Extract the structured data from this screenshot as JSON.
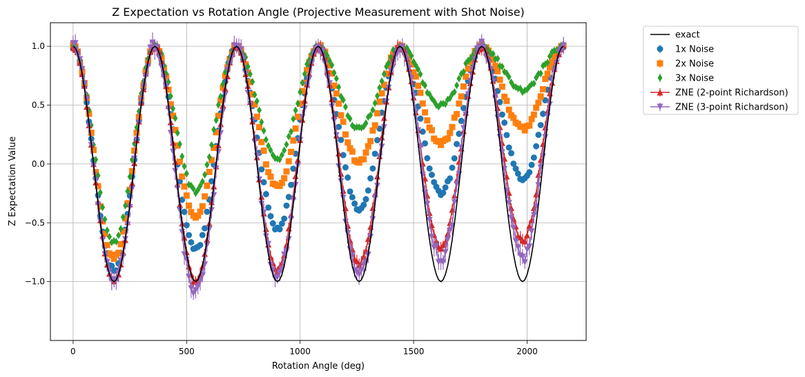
{
  "chart_data": {
    "type": "line",
    "title": "Z Expectation vs Rotation Angle (Projective Measurement with Shot Noise)",
    "xlabel": "Rotation Angle (deg)",
    "ylabel": "Z Expectation Value",
    "xlim": [
      -100,
      2260
    ],
    "ylim": [
      -1.5,
      1.2
    ],
    "xticks": [
      0,
      500,
      1000,
      1500,
      2000
    ],
    "yticks": [
      -1.0,
      -0.5,
      0.0,
      0.5,
      1.0
    ],
    "xtick_labels": [
      "0",
      "500",
      "1000",
      "1500",
      "2000"
    ],
    "ytick_labels": [
      "−1.0",
      "−0.5",
      "0.0",
      "0.5",
      "1.0"
    ],
    "grid": true,
    "legend_position": "outside-top-right",
    "sampling": {
      "x_start": 0,
      "x_end": 2160,
      "x_step": 10,
      "note": "Z expectation sampled at rotation angles 0, 10, 20, ..., 2160 deg"
    },
    "series": [
      {
        "name": "exact",
        "style": "line",
        "color": "#000000",
        "values_by_peak_period": "exact cos curve: peak 1.0 at 0, 360, 720, 1080, 1440, 1800, 2160 deg; trough -1.0 at 180, 540, 900, 1260, 1620, 1980 deg"
      },
      {
        "name": "1x Noise",
        "style": "errorbar",
        "marker": "circle",
        "color": "#1f77b4",
        "trough_values": [
          -0.9,
          -0.73,
          -0.55,
          -0.38,
          -0.25,
          -0.13
        ]
      },
      {
        "name": "2x Noise",
        "style": "errorbar",
        "marker": "square",
        "color": "#ff7f0e",
        "trough_values": [
          -0.8,
          -0.45,
          -0.2,
          0.02,
          0.17,
          0.3
        ]
      },
      {
        "name": "3x Noise",
        "style": "errorbar",
        "marker": "diamond",
        "color": "#2ca02c",
        "trough_values": [
          -0.66,
          -0.24,
          0.05,
          0.3,
          0.5,
          0.63
        ]
      },
      {
        "name": "ZNE (2-point Richardson)",
        "style": "line-errorbar",
        "marker": "triangle-up",
        "color": "#d62728",
        "trough_values": [
          -0.98,
          -1.0,
          -0.9,
          -0.85,
          -0.7,
          -0.65
        ]
      },
      {
        "name": "ZNE (3-point Richardson)",
        "style": "line-errorbar",
        "marker": "triangle-down",
        "color": "#9467bd",
        "trough_values": [
          -1.0,
          -1.1,
          -0.95,
          -0.95,
          -0.8,
          -0.8
        ]
      }
    ],
    "legend": [
      {
        "label": "exact",
        "key": "exact"
      },
      {
        "label": "1x Noise",
        "key": "n1"
      },
      {
        "label": "2x Noise",
        "key": "n2"
      },
      {
        "label": "3x Noise",
        "key": "n3"
      },
      {
        "label": "ZNE (2-point Richardson)",
        "key": "zne2"
      },
      {
        "label": "ZNE (3-point Richardson)",
        "key": "zne3"
      }
    ]
  }
}
